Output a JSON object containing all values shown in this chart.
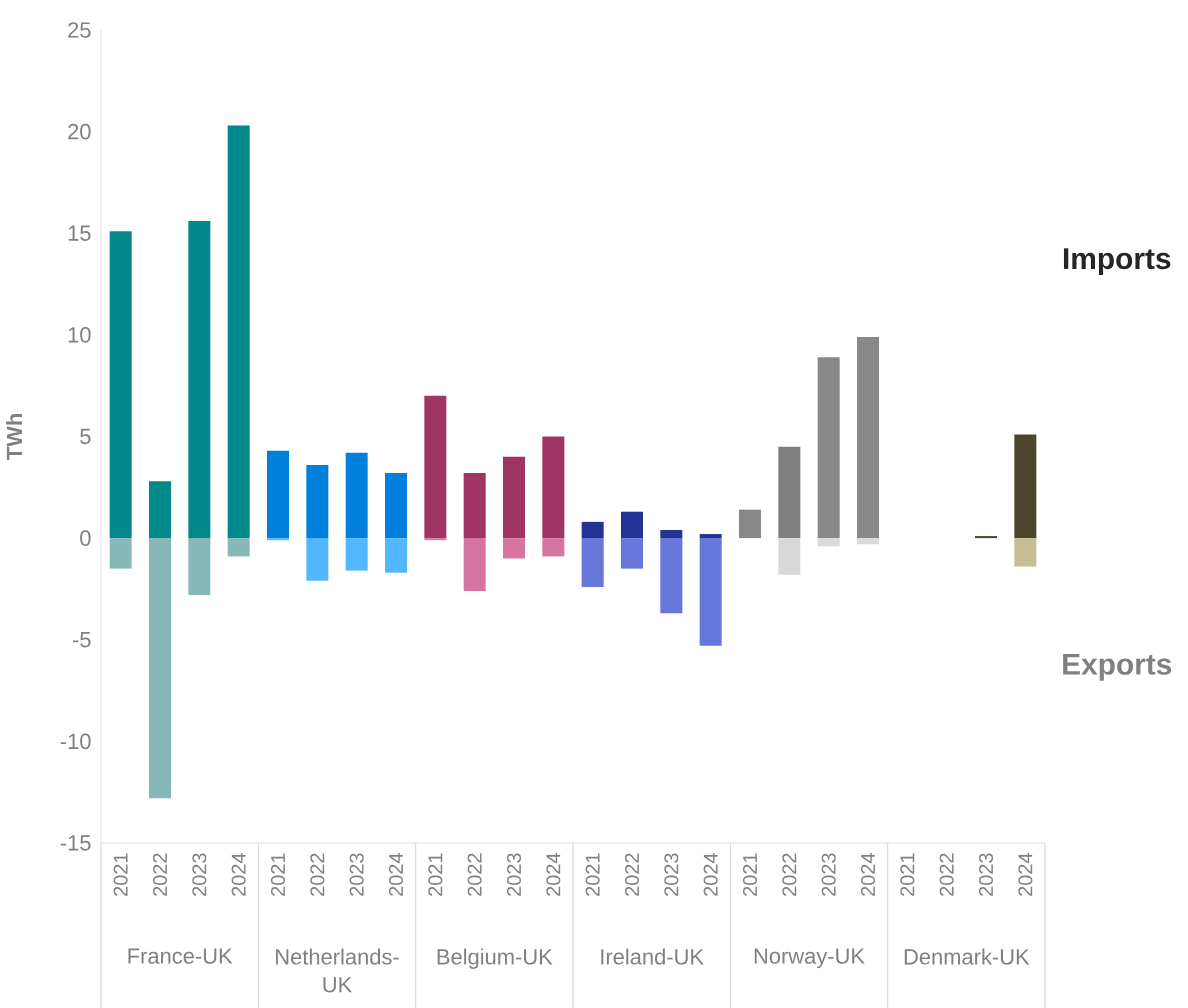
{
  "chart_data": {
    "type": "bar",
    "ylabel": "TWh",
    "stacked": true,
    "categories": [
      "2021",
      "2022",
      "2023",
      "2024",
      "2021",
      "2022",
      "2023",
      "2024",
      "2021",
      "2022",
      "2023",
      "2024",
      "2021",
      "2022",
      "2023",
      "2024",
      "2021",
      "2022",
      "2023",
      "2024",
      "2021",
      "2022",
      "2023",
      "2024"
    ],
    "annotations": [
      "France-UK",
      "Netherlands-UK",
      "Belgium-UK",
      "Ireland-UK",
      "Norway-UK",
      "Denmark-UK"
    ],
    "series": [
      {
        "name": "Imports",
        "values": [
          15.1,
          2.8,
          15.6,
          20.3,
          4.3,
          3.6,
          4.2,
          3.2,
          7.0,
          3.2,
          4.0,
          5.0,
          0.8,
          1.3,
          0.4,
          0.2,
          1.4,
          4.5,
          8.9,
          9.9,
          null,
          null,
          0.1,
          5.1
        ],
        "colors": [
          "#00888a",
          "#00888a",
          "#00888a",
          "#00888a",
          "#0080dc",
          "#0080dc",
          "#0080dc",
          "#0080dc",
          "#a03462",
          "#a03462",
          "#a03462",
          "#a03462",
          "#243496",
          "#243496",
          "#243496",
          "#243496",
          "#888888",
          "#808080",
          "#888888",
          "#888888",
          "#4b452c",
          "#4b452c",
          "#4b452c",
          "#4b452c"
        ]
      },
      {
        "name": "Exports",
        "values": [
          -1.5,
          -12.8,
          -2.8,
          -0.9,
          -0.1,
          -2.1,
          -1.6,
          -1.7,
          -0.1,
          -2.6,
          -1.0,
          -0.9,
          -2.4,
          -1.5,
          -3.7,
          -5.3,
          0,
          -1.8,
          -0.4,
          -0.3,
          null,
          null,
          null,
          -1.4
        ],
        "colors": [
          "#85b8b6",
          "#85b8b6",
          "#85b8b6",
          "#85b8b6",
          "#52b7ff",
          "#52b7ff",
          "#52b7ff",
          "#52b7ff",
          "#d676a0",
          "#d676a0",
          "#d676a0",
          "#d676a0",
          "#6676da",
          "#6676da",
          "#6676da",
          "#6676da",
          "#d9d9d9",
          "#d9d9d9",
          "#d9d9d9",
          "#d9d9d9",
          "#c6bd96",
          "#c6bd96",
          "#c6bd96",
          "#c6bd96"
        ]
      }
    ],
    "ylim": [
      -15,
      25
    ],
    "yticks": [
      -15,
      -10,
      -5,
      0,
      5,
      10,
      15,
      20,
      25
    ]
  }
}
